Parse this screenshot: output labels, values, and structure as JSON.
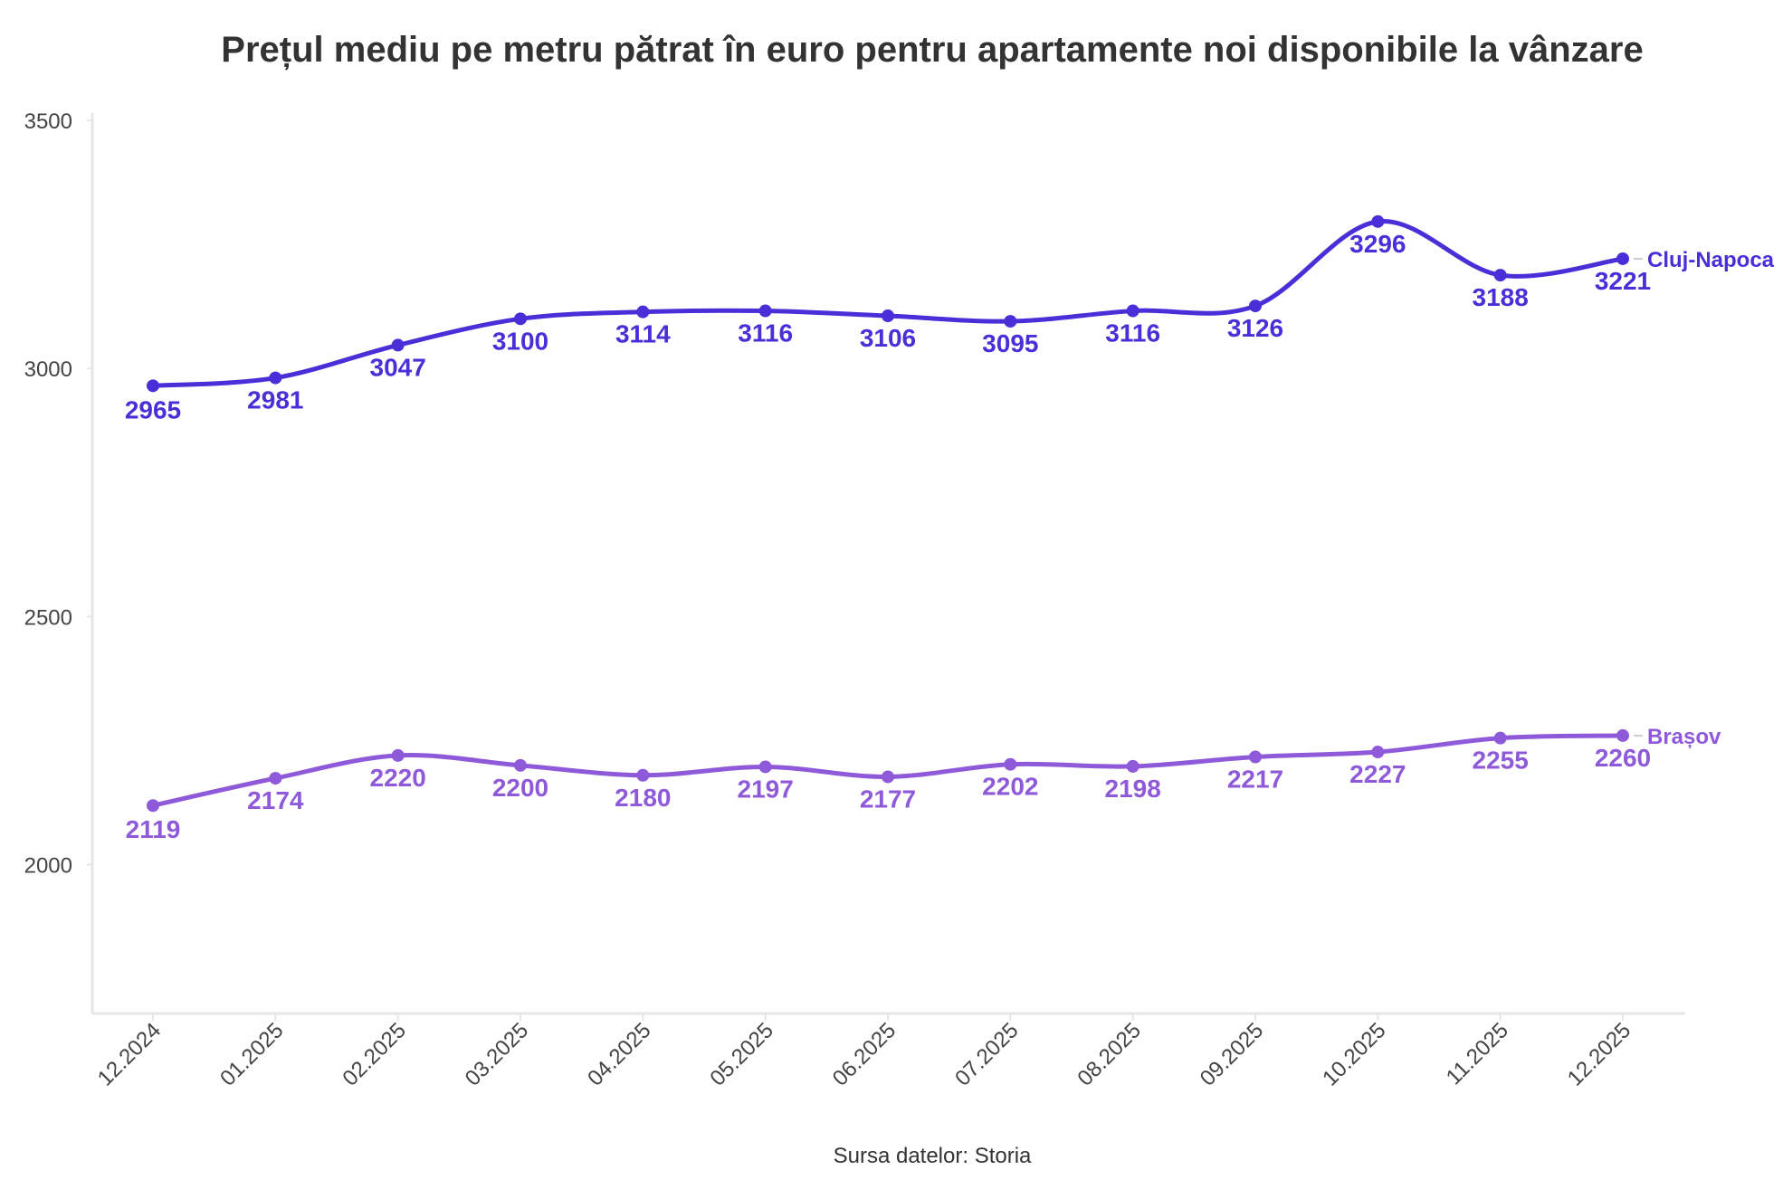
{
  "chart_data": {
    "type": "line",
    "title": "Prețul mediu pe metru pătrat în euro pentru apartamente noi disponibile la vânzare",
    "source": "Sursa datelor: Storia",
    "categories": [
      "12.2024",
      "01.2025",
      "02.2025",
      "03.2025",
      "04.2025",
      "05.2025",
      "06.2025",
      "07.2025",
      "08.2025",
      "09.2025",
      "10.2025",
      "11.2025",
      "12.2025"
    ],
    "yticks": [
      2000,
      2500,
      3000,
      3500
    ],
    "ylim": [
      1700,
      3500
    ],
    "xlabel": "",
    "ylabel": "",
    "series": [
      {
        "name": "Cluj-Napoca",
        "color": "#4a2fd8",
        "values": [
          2965,
          2981,
          3047,
          3100,
          3114,
          3116,
          3106,
          3095,
          3116,
          3126,
          3296,
          3188,
          3221
        ]
      },
      {
        "name": "Brașov",
        "color": "#8f5ad9",
        "values": [
          2119,
          2174,
          2220,
          2200,
          2180,
          2197,
          2177,
          2202,
          2198,
          2217,
          2227,
          2255,
          2260
        ]
      }
    ]
  }
}
